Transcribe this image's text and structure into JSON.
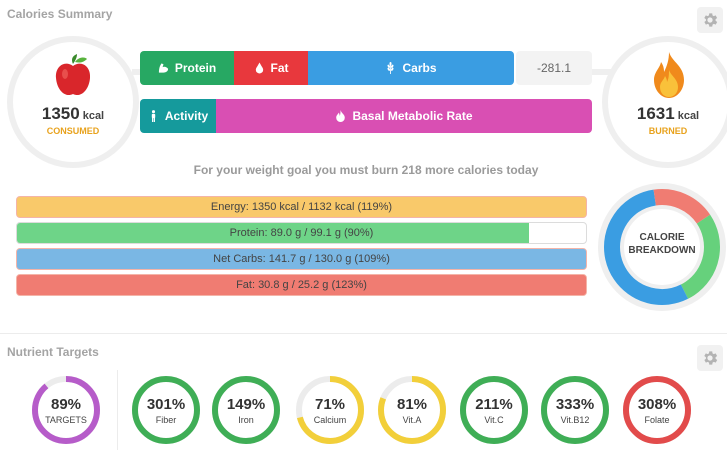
{
  "summary": {
    "title": "Calories Summary",
    "consumed": {
      "value": "1350",
      "unit": "kcal",
      "label": "CONSUMED"
    },
    "burned": {
      "value": "1631",
      "unit": "kcal",
      "label": "BURNED"
    },
    "intake_bar": [
      {
        "label": "Protein",
        "icon": "arm-icon",
        "color": "#27a863"
      },
      {
        "label": "Fat",
        "icon": "drop-icon",
        "color": "#e8383d"
      },
      {
        "label": "Carbs",
        "icon": "wheat-icon",
        "color": "#3a9de2"
      }
    ],
    "remainder": "-281.1",
    "burn_bar": [
      {
        "label": "Activity",
        "icon": "person-icon",
        "color": "#159a9c"
      },
      {
        "label": "Basal Metabolic Rate",
        "icon": "flame-icon",
        "color": "#d94fb3"
      }
    ],
    "goal_text": "For your weight goal you must burn 218 more calories today"
  },
  "progress": [
    {
      "label": "Energy: 1350 kcal / 1132 kcal (119%)",
      "fraction": 1.0,
      "fill": "#f9c96a",
      "track": "#f9c96a",
      "border": "#f4b4a8"
    },
    {
      "label": "Protein: 89.0 g / 99.1 g (90%)",
      "fraction": 0.9,
      "fill": "#6ed488",
      "track": "#ffffff",
      "border": "#dcdcdc"
    },
    {
      "label": "Net Carbs: 141.7 g / 130.0 g (109%)",
      "fraction": 1.0,
      "fill": "#7ab7e4",
      "track": "#7ab7e4",
      "border": "#f4b4a8"
    },
    {
      "label": "Fat: 30.8 g / 25.2 g (123%)",
      "fraction": 1.0,
      "fill": "#f07c72",
      "track": "#f07c72",
      "border": "#f4b4a8"
    }
  ],
  "breakdown": {
    "line1": "CALORIE",
    "line2": "BREAKDOWN",
    "segments": [
      {
        "name": "Protein",
        "fraction": 0.27,
        "color": "#66d17c"
      },
      {
        "name": "Carbs",
        "fraction": 0.55,
        "color": "#3a9de2"
      },
      {
        "name": "Fat",
        "fraction": 0.18,
        "color": "#f07c72"
      }
    ]
  },
  "nutrients": {
    "title": "Nutrient Targets",
    "items": [
      {
        "pct": "89%",
        "name": "TARGETS",
        "fraction": 0.89,
        "color": "#b65cc9"
      },
      {
        "pct": "301%",
        "name": "Fiber",
        "fraction": 1.0,
        "color": "#3fae56"
      },
      {
        "pct": "149%",
        "name": "Iron",
        "fraction": 1.0,
        "color": "#3fae56"
      },
      {
        "pct": "71%",
        "name": "Calcium",
        "fraction": 0.71,
        "color": "#f2cf3a"
      },
      {
        "pct": "81%",
        "name": "Vit.A",
        "fraction": 0.81,
        "color": "#f2cf3a"
      },
      {
        "pct": "211%",
        "name": "Vit.C",
        "fraction": 1.0,
        "color": "#3fae56"
      },
      {
        "pct": "333%",
        "name": "Vit.B12",
        "fraction": 1.0,
        "color": "#3fae56"
      },
      {
        "pct": "308%",
        "name": "Folate",
        "fraction": 1.0,
        "color": "#e24b4b"
      }
    ]
  }
}
